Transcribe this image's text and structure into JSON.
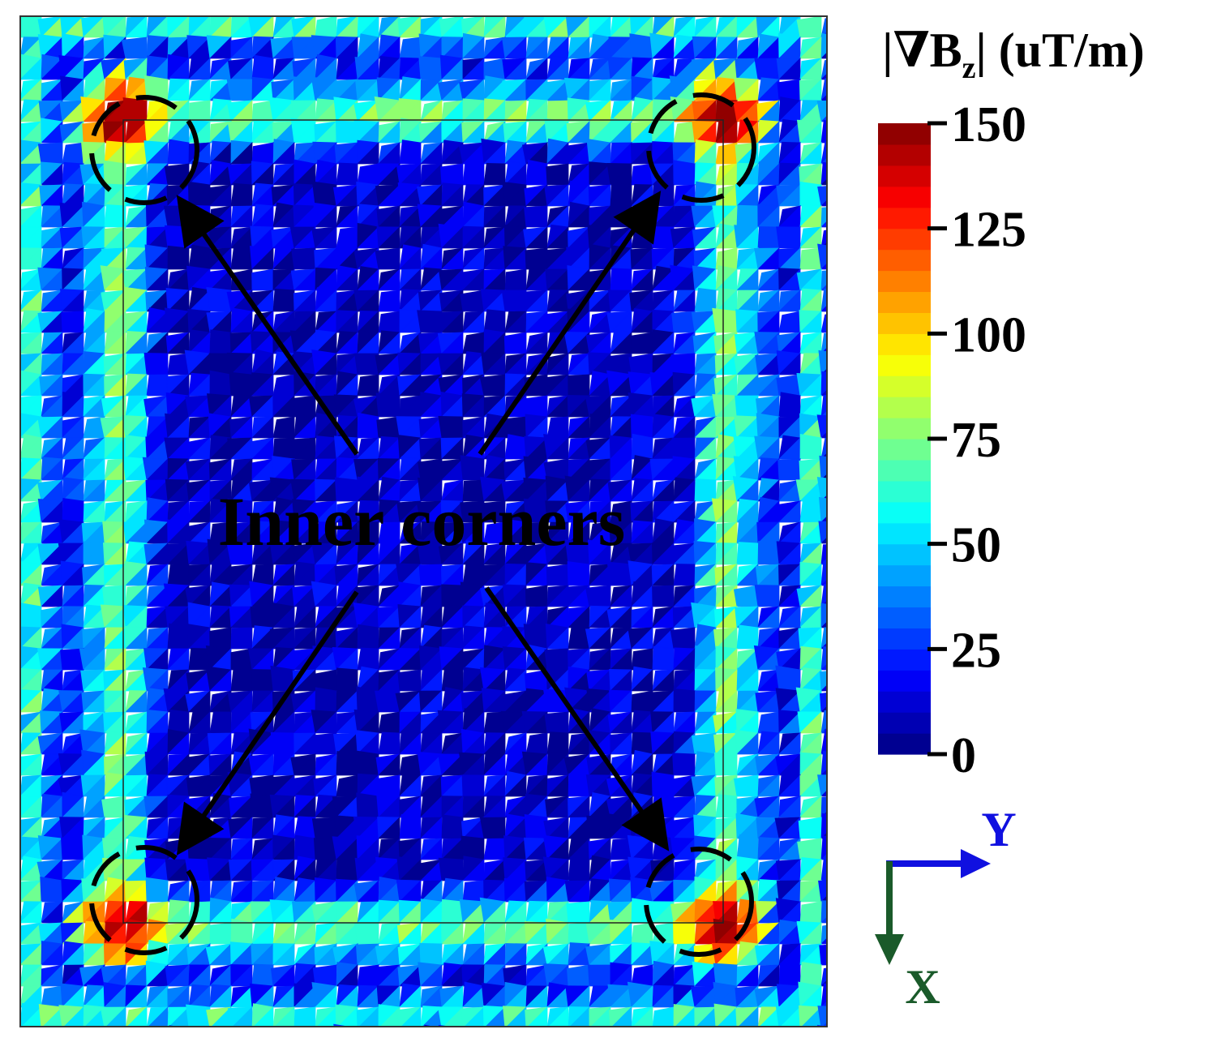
{
  "figure": {
    "annotation_label": "Inner corners",
    "colorbar_title": "|∇B",
    "colorbar_title_sub": "z",
    "colorbar_title_unit": "| (uT/m)",
    "axis_y_label": "Y",
    "axis_x_label": "X",
    "colors": {
      "axis_y": "#1010e0",
      "axis_x": "#1a5a2a",
      "frame": "#333333",
      "annotation": "#000000"
    }
  },
  "chart_data": {
    "type": "heatmap",
    "title": "",
    "colorbar": {
      "label": "|∇Bz| (uT/m)",
      "min": 0,
      "max": 150,
      "ticks": [
        0,
        25,
        50,
        75,
        100,
        125,
        150
      ],
      "tick_labels": [
        "0",
        "25",
        "50",
        "75",
        "100",
        "125",
        "150"
      ],
      "colormap": "jet",
      "levels": 30
    },
    "regions": [
      {
        "name": "center",
        "value": 10
      },
      {
        "name": "outer-edge-band",
        "value": 70
      },
      {
        "name": "inner-corner-top-left",
        "value": 150
      },
      {
        "name": "inner-corner-top-right",
        "value": 150
      },
      {
        "name": "inner-corner-bottom-left",
        "value": 150
      },
      {
        "name": "inner-corner-bottom-right",
        "value": 150
      }
    ],
    "annotations": [
      {
        "text": "Inner corners",
        "targets": [
          "top-left",
          "top-right",
          "bottom-left",
          "bottom-right"
        ],
        "marker": "dashed-circle"
      }
    ]
  }
}
